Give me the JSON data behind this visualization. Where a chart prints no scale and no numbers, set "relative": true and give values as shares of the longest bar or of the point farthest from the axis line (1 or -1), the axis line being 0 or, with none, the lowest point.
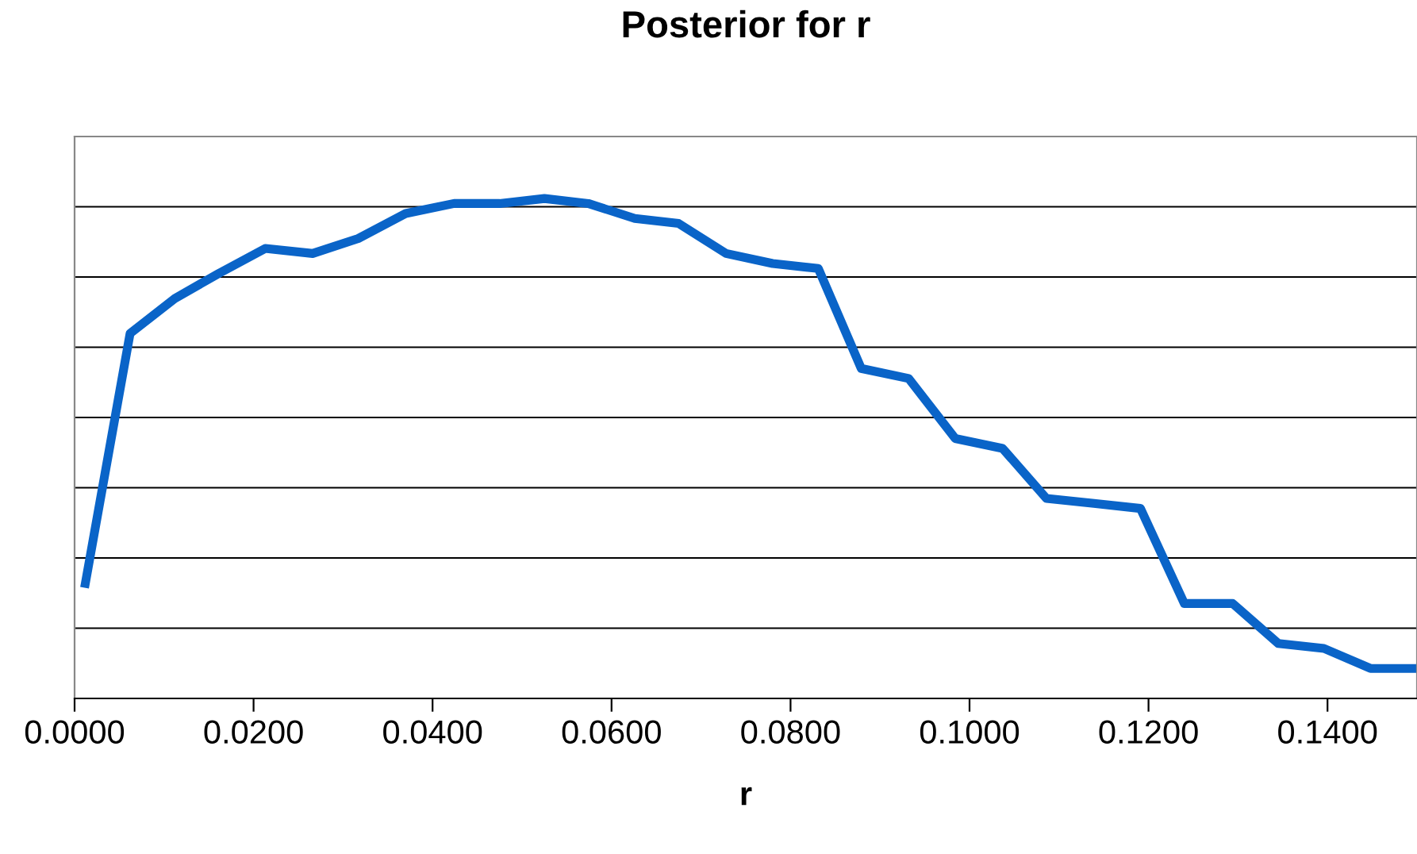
{
  "chart_data": {
    "type": "line",
    "title": "Posterior for r",
    "xlabel": "r",
    "relative": true,
    "grid": "y",
    "x": [
      0.0012,
      0.0062,
      0.0112,
      0.0161,
      0.0213,
      0.0266,
      0.0317,
      0.037,
      0.0424,
      0.0475,
      0.0525,
      0.0574,
      0.0626,
      0.0675,
      0.0728,
      0.078,
      0.0831,
      0.0879,
      0.0932,
      0.0984,
      0.1037,
      0.1086,
      0.1139,
      0.1191,
      0.124,
      0.1294,
      0.1345,
      0.1396,
      0.1448,
      0.1499
    ],
    "series": [
      {
        "color": "#0a64c8",
        "values": [
          0.23,
          0.73,
          0.8,
          0.85,
          0.9,
          0.89,
          0.92,
          0.97,
          0.99,
          0.99,
          1.0,
          0.99,
          0.96,
          0.95,
          0.89,
          0.87,
          0.86,
          0.66,
          0.64,
          0.52,
          0.5,
          0.4,
          0.39,
          0.38,
          0.19,
          0.19,
          0.11,
          0.1,
          0.06,
          0.06
        ]
      }
    ],
    "xlim": [
      0.0,
      0.15
    ],
    "xticks": [
      {
        "value": 0.0,
        "label": "0.0000"
      },
      {
        "value": 0.02,
        "label": "0.0200"
      },
      {
        "value": 0.04,
        "label": "0.0400"
      },
      {
        "value": 0.06,
        "label": "0.0600"
      },
      {
        "value": 0.08,
        "label": "0.0800"
      },
      {
        "value": 0.1,
        "label": "0.1000"
      },
      {
        "value": 0.12,
        "label": "0.1200"
      },
      {
        "value": 0.14,
        "label": "0.1400"
      }
    ],
    "marker": "none",
    "line_style": "solid"
  }
}
